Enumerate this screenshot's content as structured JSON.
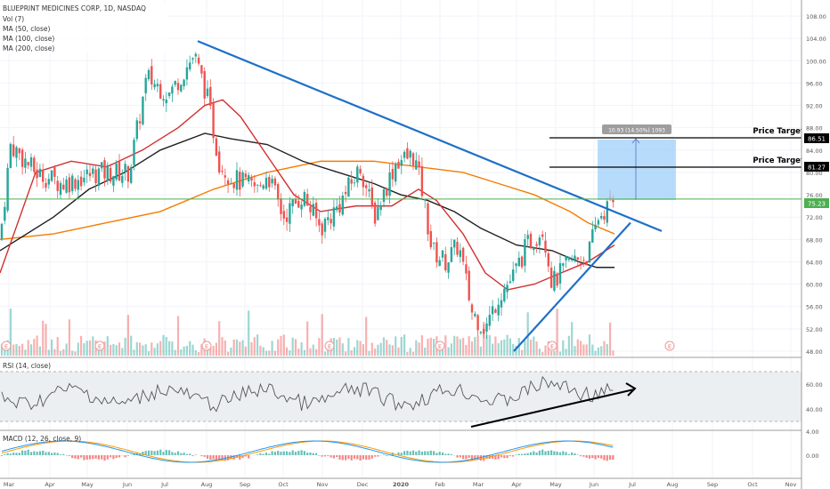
{
  "header": {
    "symbol_line": "BLUEPRINT MEDICINES CORP, 1D, NASDAQ",
    "vol_label": "Vol (7)",
    "ma50_label": "MA (50, close)",
    "ma100_label": "MA (100, close)",
    "ma200_label": "MA (200, close)"
  },
  "rsi_label": "RSI (14, close)",
  "macd_label": "MACD (12, 26, close, 9)",
  "price_axis": [
    "108.00",
    "104.00",
    "100.00",
    "96.00",
    "92.00",
    "88.00",
    "84.00",
    "80.00",
    "76.00",
    "72.00",
    "68.00",
    "64.00",
    "60.00",
    "56.00",
    "52.00",
    "48.00"
  ],
  "rsi_axis": [
    "60.00",
    "40.00"
  ],
  "macd_axis": [
    "4.00",
    "0.00"
  ],
  "time_axis": [
    "Mar",
    "Apr",
    "May",
    "Jun",
    "Jul",
    "Aug",
    "Sep",
    "Oct",
    "Nov",
    "Dec",
    "2020",
    "Feb",
    "Mar",
    "Apr",
    "May",
    "Jun",
    "Jul",
    "Aug",
    "Sep",
    "Oct",
    "Nov"
  ],
  "annotations": {
    "price_target_label": "Price Target",
    "target1": "86.51",
    "target2": "81.27",
    "current_price": "75.23",
    "measure_box_text": "10.93 (14.50%) 1093",
    "earnings_marker": "E"
  },
  "colors": {
    "up": "#26a69a",
    "down": "#ef5350",
    "ma50": "#d32f2f",
    "ma100": "#212121",
    "ma200": "#f57c00",
    "trendline": "#1e6fc8",
    "measure_fill": "#90caf9",
    "rsi_line": "#555555",
    "macd_line": "#2196f3",
    "signal_line": "#ff9800",
    "current_price_line": "#4caf50"
  },
  "chart_data": {
    "type": "candlestick",
    "title": "BLUEPRINT MEDICINES CORP, 1D, NASDAQ",
    "ylim": [
      48,
      108
    ],
    "keypoints": [
      {
        "x": 0,
        "close": 68
      },
      {
        "x": 12,
        "close": 85
      },
      {
        "x": 40,
        "close": 80
      },
      {
        "x": 70,
        "close": 78
      },
      {
        "x": 110,
        "close": 80
      },
      {
        "x": 145,
        "close": 80
      },
      {
        "x": 165,
        "close": 97
      },
      {
        "x": 190,
        "close": 94
      },
      {
        "x": 218,
        "close": 101
      },
      {
        "x": 232,
        "close": 94
      },
      {
        "x": 246,
        "close": 82
      },
      {
        "x": 260,
        "close": 79
      },
      {
        "x": 290,
        "close": 77
      },
      {
        "x": 300,
        "close": 80
      },
      {
        "x": 318,
        "close": 72
      },
      {
        "x": 340,
        "close": 76
      },
      {
        "x": 360,
        "close": 70
      },
      {
        "x": 380,
        "close": 74
      },
      {
        "x": 405,
        "close": 81
      },
      {
        "x": 420,
        "close": 72
      },
      {
        "x": 445,
        "close": 82
      },
      {
        "x": 465,
        "close": 83
      },
      {
        "x": 475,
        "close": 76
      },
      {
        "x": 485,
        "close": 66
      },
      {
        "x": 500,
        "close": 64
      },
      {
        "x": 515,
        "close": 67
      },
      {
        "x": 530,
        "close": 55
      },
      {
        "x": 545,
        "close": 52
      },
      {
        "x": 560,
        "close": 58
      },
      {
        "x": 575,
        "close": 61
      },
      {
        "x": 592,
        "close": 67
      },
      {
        "x": 610,
        "close": 70
      },
      {
        "x": 620,
        "close": 60
      },
      {
        "x": 640,
        "close": 64
      },
      {
        "x": 660,
        "close": 65
      },
      {
        "x": 672,
        "close": 72
      },
      {
        "x": 690,
        "close": 75
      }
    ],
    "ma50": [
      [
        0,
        62
      ],
      [
        40,
        80
      ],
      [
        80,
        82
      ],
      [
        120,
        81
      ],
      [
        160,
        84
      ],
      [
        200,
        88
      ],
      [
        230,
        92
      ],
      [
        250,
        93
      ],
      [
        270,
        90
      ],
      [
        300,
        83
      ],
      [
        330,
        76
      ],
      [
        360,
        73
      ],
      [
        400,
        74
      ],
      [
        440,
        74
      ],
      [
        470,
        77
      ],
      [
        490,
        75
      ],
      [
        520,
        69
      ],
      [
        545,
        62
      ],
      [
        570,
        59
      ],
      [
        600,
        60
      ],
      [
        630,
        62
      ],
      [
        660,
        64
      ],
      [
        690,
        67
      ]
    ],
    "ma100": [
      [
        0,
        66
      ],
      [
        60,
        72
      ],
      [
        100,
        77
      ],
      [
        140,
        80
      ],
      [
        180,
        84
      ],
      [
        230,
        87
      ],
      [
        260,
        86
      ],
      [
        300,
        85
      ],
      [
        340,
        82
      ],
      [
        380,
        80
      ],
      [
        420,
        78
      ],
      [
        450,
        76
      ],
      [
        480,
        75
      ],
      [
        510,
        73
      ],
      [
        540,
        70
      ],
      [
        580,
        67
      ],
      [
        620,
        66
      ],
      [
        650,
        64
      ],
      [
        670,
        63
      ],
      [
        690,
        63
      ]
    ],
    "ma200": [
      [
        0,
        68
      ],
      [
        60,
        69
      ],
      [
        120,
        71
      ],
      [
        180,
        73
      ],
      [
        240,
        77
      ],
      [
        300,
        80
      ],
      [
        360,
        82
      ],
      [
        420,
        82
      ],
      [
        470,
        81
      ],
      [
        520,
        80
      ],
      [
        560,
        78
      ],
      [
        600,
        76
      ],
      [
        640,
        73
      ],
      [
        660,
        71
      ],
      [
        690,
        69
      ]
    ],
    "trendlines": [
      {
        "from": [
          222,
          103.5
        ],
        "to": [
          743,
          69.5
        ]
      },
      {
        "from": [
          577,
          48
        ],
        "to": [
          708,
          71
        ]
      }
    ],
    "price_targets": [
      86.51,
      81.27
    ],
    "current_price": 75.23
  }
}
